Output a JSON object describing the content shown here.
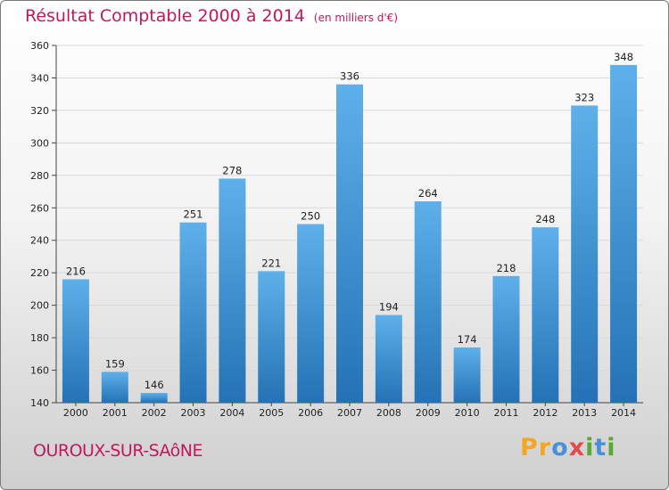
{
  "chart_data": {
    "type": "bar",
    "title": "Résultat Comptable 2000 à 2014",
    "subtitle": "(en milliers d'€)",
    "categories": [
      "2000",
      "2001",
      "2002",
      "2003",
      "2004",
      "2005",
      "2006",
      "2007",
      "2008",
      "2009",
      "2010",
      "2011",
      "2012",
      "2013",
      "2014"
    ],
    "values": [
      216,
      159,
      146,
      251,
      278,
      221,
      250,
      336,
      194,
      264,
      174,
      218,
      248,
      323,
      348
    ],
    "ylim": [
      140,
      360
    ],
    "yticks": [
      140,
      160,
      180,
      200,
      220,
      240,
      260,
      280,
      300,
      320,
      340,
      360
    ],
    "grid": true,
    "xlabel": "",
    "ylabel": ""
  },
  "footer": {
    "town": "OUROUX-SUR-SAôNE",
    "logo_letters": [
      {
        "ch": "P",
        "color": "#f5a623"
      },
      {
        "ch": "r",
        "color": "#f5a623"
      },
      {
        "ch": "o",
        "color": "#4a90d9"
      },
      {
        "ch": "x",
        "color": "#e14b4b"
      },
      {
        "ch": "i",
        "color": "#5aa832"
      },
      {
        "ch": "t",
        "color": "#4a90d9"
      },
      {
        "ch": "i",
        "color": "#5aa832"
      }
    ]
  },
  "colors": {
    "bar_light": "#5eb0ea",
    "bar_dark": "#2472b5",
    "title": "#c2185b"
  }
}
